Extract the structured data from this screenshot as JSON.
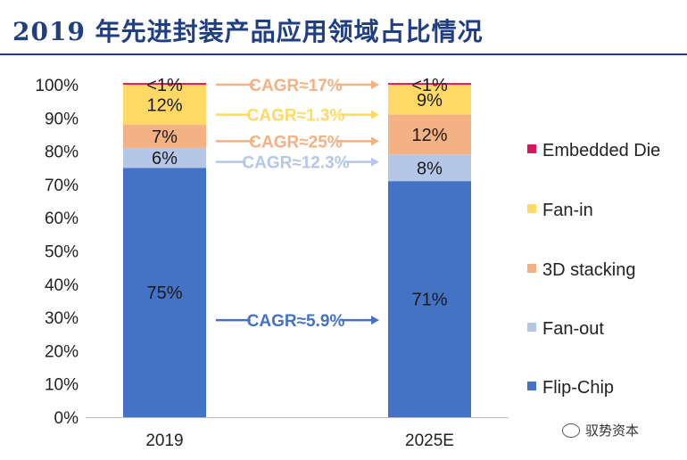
{
  "title": "2019 年先进封装产品应用领域占比情况",
  "watermark": "驭势资本",
  "chart_data": {
    "type": "bar",
    "stacked": true,
    "percent": true,
    "categories": [
      "2019",
      "2025E"
    ],
    "ylim": [
      0,
      100
    ],
    "yticks": [
      0,
      10,
      20,
      30,
      40,
      50,
      60,
      70,
      80,
      90,
      100
    ],
    "ytick_suffix": "%",
    "legend_position": "right",
    "series": [
      {
        "name": "Flip-Chip",
        "color": "#4472c4",
        "values": [
          75,
          71
        ],
        "labels": [
          "75%",
          "71%"
        ],
        "label_color": "#1a1a1a"
      },
      {
        "name": "Fan-out",
        "color": "#b4c7e7",
        "values": [
          6,
          8
        ],
        "labels": [
          "6%",
          "8%"
        ],
        "label_color": "#1a1a1a"
      },
      {
        "name": "3D stacking",
        "color": "#f4b183",
        "values": [
          7,
          12
        ],
        "labels": [
          "7%",
          "12%"
        ],
        "label_color": "#1a1a1a"
      },
      {
        "name": "Fan-in",
        "color": "#ffd966",
        "values": [
          12,
          9
        ],
        "labels": [
          "12%",
          "9%"
        ],
        "label_color": "#1a1a1a"
      },
      {
        "name": "Embedded Die",
        "color": "#e0115f",
        "values": [
          0.5,
          0.5
        ],
        "labels": [
          "<1%",
          "<1%"
        ],
        "label_color": "#1a1a1a"
      }
    ],
    "cagr_annotations": [
      {
        "series": "Embedded Die",
        "text": "CAGR≈17%",
        "color": "#f4b183"
      },
      {
        "series": "Fan-in",
        "text": "CAGR≈1.3%",
        "color": "#ffd966"
      },
      {
        "series": "3D stacking",
        "text": "CAGR≈25%",
        "color": "#f4b183"
      },
      {
        "series": "Fan-out",
        "text": "CAGR≈12.3%",
        "color": "#b4c7e7"
      },
      {
        "series": "Flip-Chip",
        "text": "CAGR≈5.9%",
        "color": "#4472c4"
      }
    ]
  }
}
